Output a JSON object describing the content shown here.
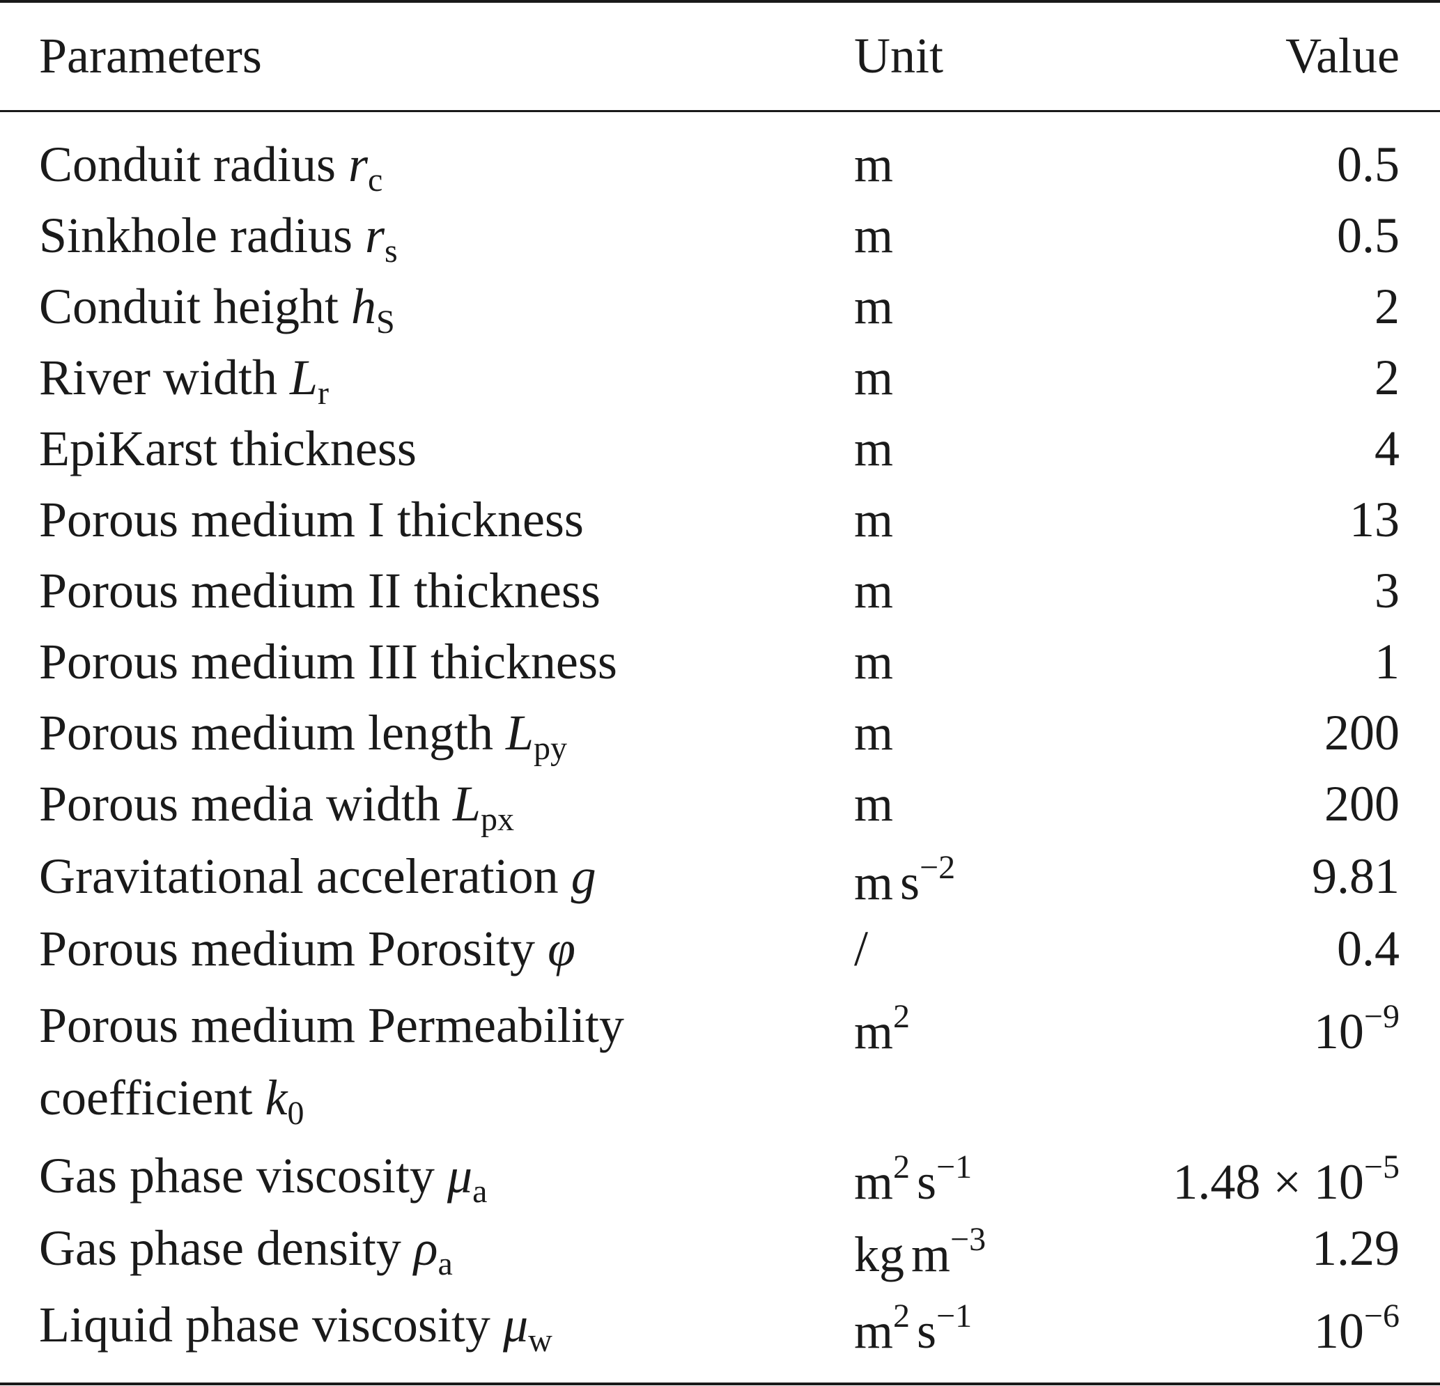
{
  "header": {
    "parameters": "Parameters",
    "unit": "Unit",
    "value": "Value"
  },
  "rows": [
    {
      "name": "Conduit radius",
      "sym": "r",
      "sub": "c",
      "unit": "m",
      "value": "0.5"
    },
    {
      "name": "Sinkhole radius",
      "sym": "r",
      "sub": "s",
      "unit": "m",
      "value": "0.5"
    },
    {
      "name": "Conduit height",
      "sym": "h",
      "sub": "S",
      "unit": "m",
      "value": "2"
    },
    {
      "name": "River width",
      "sym": "L",
      "sub": "r",
      "unit": "m",
      "value": "2"
    },
    {
      "name": "EpiKarst thickness",
      "unit": "m",
      "value": "4"
    },
    {
      "name": "Porous medium I thickness",
      "unit": "m",
      "value": "13"
    },
    {
      "name": "Porous medium II thickness",
      "unit": "m",
      "value": "3"
    },
    {
      "name": "Porous medium III thickness",
      "unit": "m",
      "value": "1"
    },
    {
      "name": "Porous medium length",
      "sym": "L",
      "sub": "py",
      "unit": "m",
      "value": "200"
    },
    {
      "name": "Porous media width",
      "sym": "L",
      "sub": "px",
      "unit": "m",
      "value": "200"
    },
    {
      "name": "Gravitational acceleration",
      "sym": "g",
      "unit_a": "m",
      "unit_b": "s",
      "unit_b_sup": "−2",
      "value": "9.81"
    },
    {
      "name": "Porous medium Porosity",
      "sym": "φ",
      "unit": "/",
      "value": "0.4"
    },
    {
      "name": "Porous medium Permeability",
      "name2": "coefficient",
      "sym": "k",
      "sub": "0",
      "unit": "m",
      "unit_sup": "2",
      "value_base": "10",
      "value_sup": "−9"
    },
    {
      "name": "Gas phase viscosity",
      "sym": "μ",
      "sub": "a",
      "unit_a": "m",
      "unit_a_sup": "2",
      "unit_b": "s",
      "unit_b_sup": "−1",
      "value_mant": "1.48",
      "value_times": "×",
      "value_base": "10",
      "value_sup": "−5"
    },
    {
      "name": "Gas phase density",
      "sym": "ρ",
      "sub": "a",
      "unit_a": "kg",
      "unit_b": "m",
      "unit_b_sup": "−3",
      "value": "1.29"
    },
    {
      "name": "Liquid phase viscosity",
      "sym": "μ",
      "sub": "w",
      "unit_a": "m",
      "unit_a_sup": "2",
      "unit_b": "s",
      "unit_b_sup": "−1",
      "value_base": "10",
      "value_sup": "−6"
    }
  ]
}
